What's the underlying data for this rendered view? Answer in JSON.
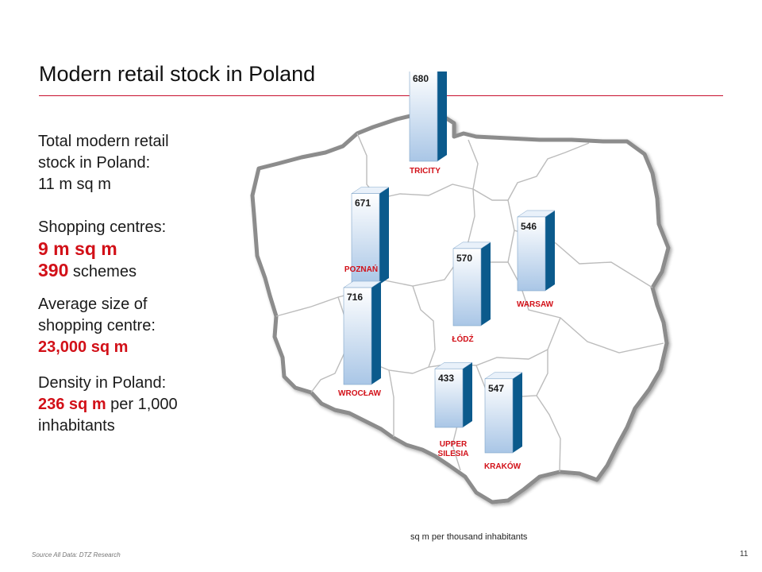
{
  "slide": {
    "title": "Modern retail stock in Poland",
    "page_number": "11",
    "source": "Source All Data: DTZ Research"
  },
  "summary": {
    "total_line1": "Total modern retail",
    "total_line2": "stock in Poland:",
    "total_value": "11 m sq m",
    "sc_label": "Shopping centres:",
    "sc_area": "9 m sq m",
    "sc_schemes_num": "390",
    "sc_schemes_word": " schemes",
    "avg_line1": "Average size of",
    "avg_line2": "shopping centre:",
    "avg_value": "23,000 sq m",
    "density_label": "Density in Poland:",
    "density_value": "236 sq m",
    "density_rest": " per 1,000",
    "density_tail": "inhabitants"
  },
  "colors": {
    "accent_red": "#d21018",
    "bar_front_top": "#ffffff",
    "bar_front_bottom": "#a9c6e6",
    "bar_side": "#0b5a8c",
    "border_grey": "#8c8c8c"
  },
  "chart_data": {
    "type": "bar",
    "unit_note": "sq m per thousand inhabitants",
    "categories": [
      "TRICITY",
      "POZNAŃ",
      "WROCŁAW",
      "ŁÓDŹ",
      "WARSAW",
      "UPPER SILESIA",
      "KRAKÓW"
    ],
    "values": [
      680,
      671,
      716,
      570,
      546,
      433,
      547
    ]
  }
}
